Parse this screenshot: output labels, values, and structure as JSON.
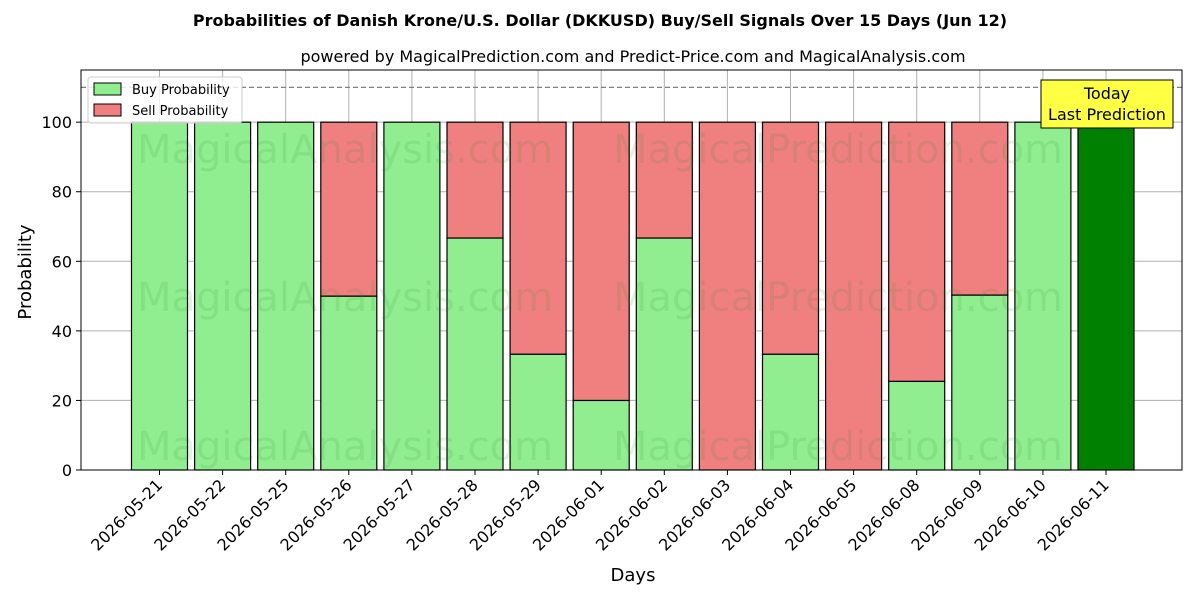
{
  "chart_data": {
    "type": "bar",
    "stacked": true,
    "title": "Probabilities of Danish Krone/U.S. Dollar (DKKUSD) Buy/Sell Signals Over 15 Days (Jun 12)",
    "subtitle": "powered by MagicalPrediction.com and Predict-Price.com and MagicalAnalysis.com",
    "xlabel": "Days",
    "ylabel": "Probability",
    "ylim": [
      0,
      115
    ],
    "yticks": [
      0,
      20,
      40,
      60,
      80,
      100
    ],
    "reference_line": 110,
    "grid": true,
    "legend_placement": "top-left",
    "categories": [
      "2026-05-21",
      "2026-05-22",
      "2026-05-25",
      "2026-05-26",
      "2026-05-27",
      "2026-05-28",
      "2026-05-29",
      "2026-06-01",
      "2026-06-02",
      "2026-06-03",
      "2026-06-04",
      "2026-06-05",
      "2026-06-08",
      "2026-06-09",
      "2026-06-10",
      "2026-06-11"
    ],
    "series": [
      {
        "name": "Buy Probability",
        "color": "#90ee90",
        "values": [
          100,
          100,
          100,
          50,
          100,
          66.7,
          33.3,
          20,
          66.7,
          0,
          33.3,
          0,
          25.5,
          50.3,
          100,
          100
        ]
      },
      {
        "name": "Sell Probability",
        "color": "#f08080",
        "values": [
          0,
          0,
          0,
          50,
          0,
          33.3,
          66.7,
          80,
          33.3,
          100,
          66.7,
          100,
          74.5,
          49.7,
          0,
          0
        ]
      }
    ],
    "highlight": {
      "index": 15,
      "color": "#008000"
    },
    "annotation": {
      "lines": [
        "Today",
        "Last Prediction"
      ],
      "background": "#ffff44"
    },
    "watermarks": [
      "MagicalAnalysis.com",
      "MagicalPrediction.com"
    ]
  }
}
